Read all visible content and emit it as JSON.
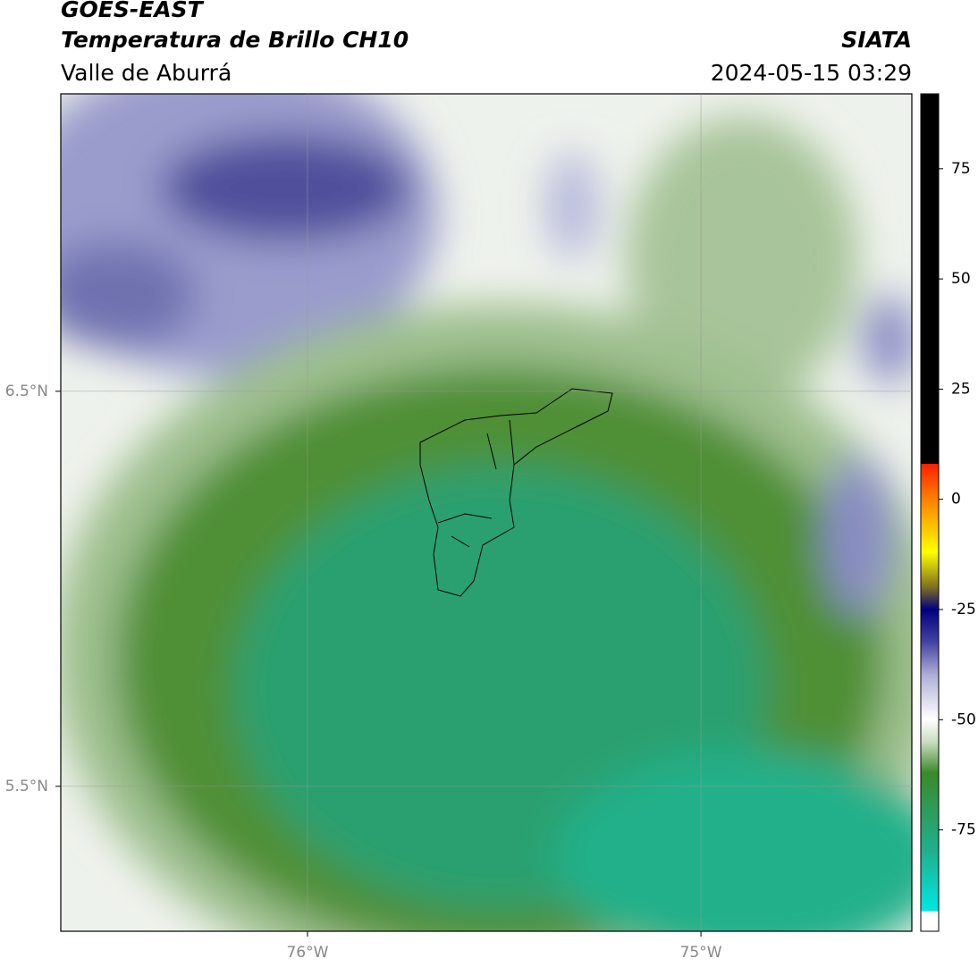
{
  "header": {
    "title": "GOES-EAST",
    "subtitle": "Temperatura de Brillo CH10",
    "region": "Valle de Aburrá",
    "source": "SIATA",
    "datetime": "2024-05-15 03:29"
  },
  "map": {
    "xlim": [
      -76.627,
      -74.464
    ],
    "ylim": [
      5.133,
      7.253
    ],
    "xticks": [
      {
        "value": -76,
        "label": "76°W"
      },
      {
        "value": -75,
        "label": "75°W"
      }
    ],
    "yticks": [
      {
        "value": 6.5,
        "label": "6.5°N"
      },
      {
        "value": 5.5,
        "label": "5.5°N"
      }
    ],
    "grid": true
  },
  "colorbar": {
    "lim": [
      -98,
      92
    ],
    "ticks": [
      75,
      50,
      25,
      0,
      -25,
      -50,
      -75
    ]
  }
}
